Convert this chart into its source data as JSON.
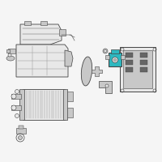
{
  "background_color": "#f5f5f5",
  "highlight_color": "#2eb8c0",
  "line_color": "#444444",
  "mid_gray": "#999999",
  "dark_gray": "#666666",
  "fill_gray": "#c8c8c8",
  "fill_light": "#e8e8e8",
  "fill_white": "#f0f0f0",
  "figsize": [
    2.0,
    2.0
  ],
  "dpi": 100
}
